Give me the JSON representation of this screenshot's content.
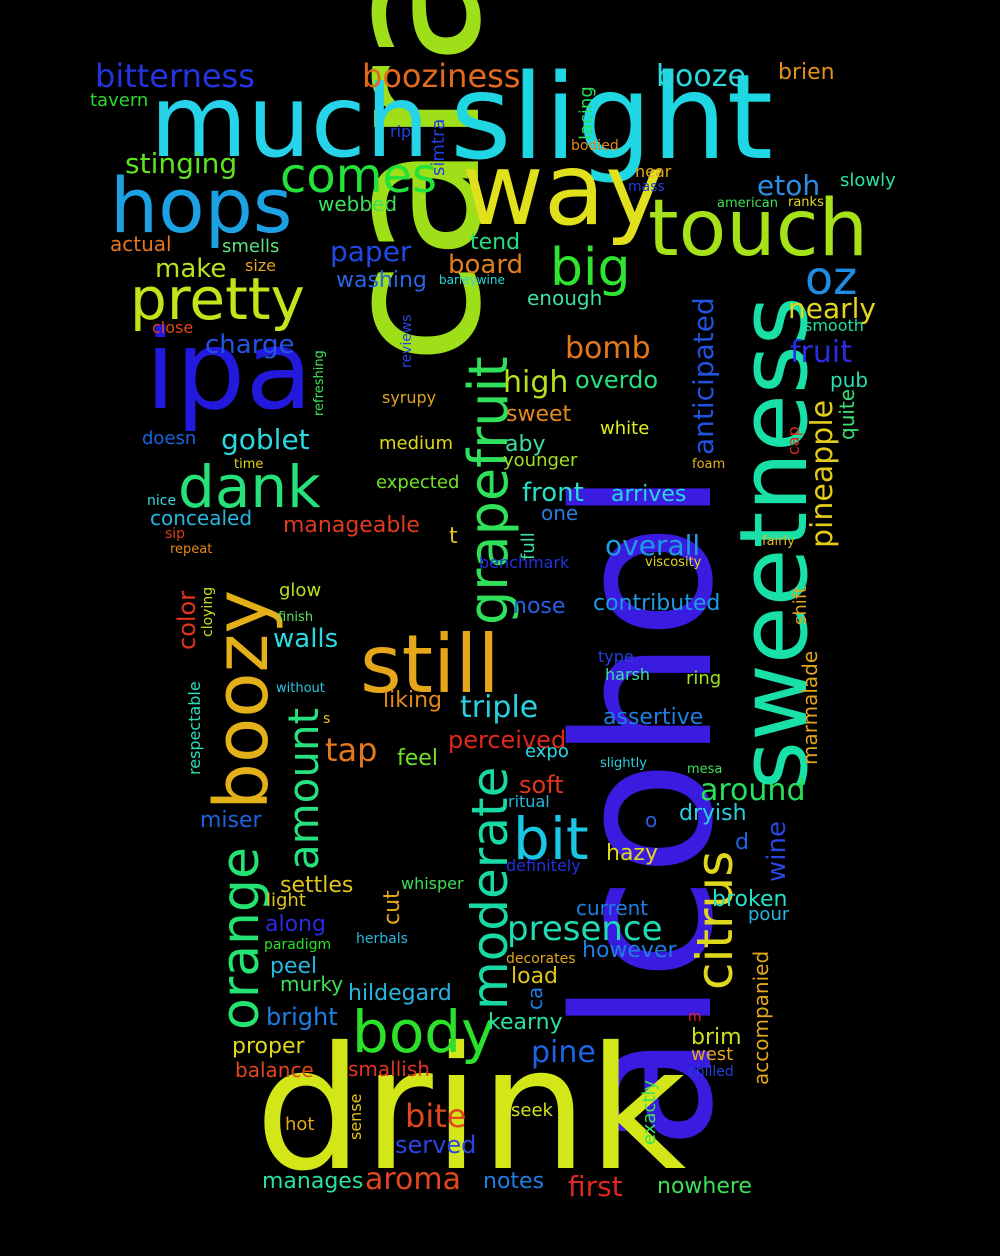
{
  "words": [
    {
      "text": "caramel",
      "color": "#9fdf1a"
    },
    {
      "text": "alcohol",
      "color": "#3a1be0"
    },
    {
      "text": "drink",
      "color": "#d3e617"
    },
    {
      "text": "slight",
      "color": "#1fd6e3"
    },
    {
      "text": "much",
      "color": "#27d3e8"
    },
    {
      "text": "sweetness",
      "color": "#19e0a7"
    },
    {
      "text": "way",
      "color": "#e1e01c"
    },
    {
      "text": "ipa",
      "color": "#2219dc"
    },
    {
      "text": "touch",
      "color": "#a6e21a"
    },
    {
      "text": "boozy",
      "color": "#e3b01a"
    },
    {
      "text": "hops",
      "color": "#1ca2e3"
    },
    {
      "text": "still",
      "color": "#e5a719"
    },
    {
      "text": "pretty",
      "color": "#c3e41a"
    },
    {
      "text": "grapefruit",
      "color": "#2fe05a"
    },
    {
      "text": "moderate",
      "color": "#18d9a3"
    },
    {
      "text": "dank",
      "color": "#26e07a"
    },
    {
      "text": "body",
      "color": "#2de02a"
    },
    {
      "text": "orange",
      "color": "#24e370"
    },
    {
      "text": "citrus",
      "color": "#dfd71c"
    },
    {
      "text": "bit",
      "color": "#1ac6e3"
    },
    {
      "text": "comes",
      "color": "#23e33a"
    },
    {
      "text": "big",
      "color": "#2fe52f"
    },
    {
      "text": "oz",
      "color": "#1f8ce3"
    },
    {
      "text": "amount",
      "color": "#27e17f"
    },
    {
      "text": "presence",
      "color": "#1fdcb4"
    },
    {
      "text": "pineapple",
      "color": "#e3cb1c"
    },
    {
      "text": "anticipated",
      "color": "#2153e0"
    },
    {
      "text": "bitterness",
      "color": "#2633e0"
    },
    {
      "text": "booziness",
      "color": "#e3691d"
    },
    {
      "text": "booze",
      "color": "#2bd8e0"
    },
    {
      "text": "brien",
      "color": "#e3901d"
    },
    {
      "text": "tavern",
      "color": "#2ad92a"
    },
    {
      "text": "stinging",
      "color": "#5fe321"
    },
    {
      "text": "etoh",
      "color": "#2b8ee3"
    },
    {
      "text": "slowly",
      "color": "#29e3a2"
    },
    {
      "text": "webbed",
      "color": "#3de05a"
    },
    {
      "text": "actual",
      "color": "#e3781f"
    },
    {
      "text": "smells",
      "color": "#5ee07c"
    },
    {
      "text": "paper",
      "color": "#2049e3"
    },
    {
      "text": "tend",
      "color": "#27e07c"
    },
    {
      "text": "make",
      "color": "#b9e31d"
    },
    {
      "text": "size",
      "color": "#e3a31c"
    },
    {
      "text": "board",
      "color": "#e07f1f"
    },
    {
      "text": "washing",
      "color": "#2666e3"
    },
    {
      "text": "enough",
      "color": "#3de0a0"
    },
    {
      "text": "nearly",
      "color": "#e3d61d"
    },
    {
      "text": "smooth",
      "color": "#20e0a0"
    },
    {
      "text": "close",
      "color": "#e0471f"
    },
    {
      "text": "charge",
      "color": "#2553e3"
    },
    {
      "text": "bomb",
      "color": "#e3781c"
    },
    {
      "text": "fruit",
      "color": "#2b2de3"
    },
    {
      "text": "high",
      "color": "#b3e31d"
    },
    {
      "text": "overdo",
      "color": "#26e07c"
    },
    {
      "text": "pub",
      "color": "#2bdfb0"
    },
    {
      "text": "syrupy",
      "color": "#e3a21f"
    },
    {
      "text": "sweet",
      "color": "#e3891c"
    },
    {
      "text": "quite",
      "color": "#3de075"
    },
    {
      "text": "doesn",
      "color": "#1a63e0"
    },
    {
      "text": "goblet",
      "color": "#2ad8e0"
    },
    {
      "text": "medium",
      "color": "#dfd91d"
    },
    {
      "text": "aby",
      "color": "#3de0a0"
    },
    {
      "text": "white",
      "color": "#dff01d"
    },
    {
      "text": "cap",
      "color": "#e0271f"
    },
    {
      "text": "time",
      "color": "#dfd51d"
    },
    {
      "text": "younger",
      "color": "#9ee01d"
    },
    {
      "text": "foam",
      "color": "#e3b21c"
    },
    {
      "text": "nice",
      "color": "#3ad8e0"
    },
    {
      "text": "expected",
      "color": "#6ee32a"
    },
    {
      "text": "front",
      "color": "#29e0c6"
    },
    {
      "text": "arrives",
      "color": "#29d8e0"
    },
    {
      "text": "concealed",
      "color": "#29b6e0"
    },
    {
      "text": "one",
      "color": "#2a7ae0"
    },
    {
      "text": "sip",
      "color": "#e03a1f"
    },
    {
      "text": "manageable",
      "color": "#e03a1f"
    },
    {
      "text": "t",
      "color": "#e3c41d"
    },
    {
      "text": "full",
      "color": "#3de0a0"
    },
    {
      "text": "overall",
      "color": "#1d9ce3"
    },
    {
      "text": "fairly",
      "color": "#e3b91d"
    },
    {
      "text": "repeat",
      "color": "#e3891c"
    },
    {
      "text": "benchmark",
      "color": "#2232e0"
    },
    {
      "text": "viscosity",
      "color": "#e3d71d"
    },
    {
      "text": "color",
      "color": "#e0351f"
    },
    {
      "text": "cloying",
      "color": "#cfe01d"
    },
    {
      "text": "glow",
      "color": "#b7e31d"
    },
    {
      "text": "nose",
      "color": "#2b5ee3"
    },
    {
      "text": "contributed",
      "color": "#1d9ce3"
    },
    {
      "text": "shift",
      "color": "#e3a71c"
    },
    {
      "text": "finish",
      "color": "#5fe060"
    },
    {
      "text": "walls",
      "color": "#29d8e0"
    },
    {
      "text": "type",
      "color": "#2241e0"
    },
    {
      "text": "harsh",
      "color": "#3de0a0"
    },
    {
      "text": "ring",
      "color": "#a1e31d"
    },
    {
      "text": "marmalade",
      "color": "#e3a31c"
    },
    {
      "text": "respectable",
      "color": "#29e0b6"
    },
    {
      "text": "without",
      "color": "#29c4e0"
    },
    {
      "text": "liking",
      "color": "#e3891c"
    },
    {
      "text": "triple",
      "color": "#29d0e0"
    },
    {
      "text": "assertive",
      "color": "#1d7ee3"
    },
    {
      "text": "s",
      "color": "#e3c41d"
    },
    {
      "text": "tap",
      "color": "#e3781c"
    },
    {
      "text": "perceived",
      "color": "#e0271f"
    },
    {
      "text": "expo",
      "color": "#29d8e0"
    },
    {
      "text": "feel",
      "color": "#6fe32a"
    },
    {
      "text": "slightly",
      "color": "#29d0e0"
    },
    {
      "text": "mesa",
      "color": "#3de05a"
    },
    {
      "text": "soft",
      "color": "#e0351f"
    },
    {
      "text": "around",
      "color": "#29e05a"
    },
    {
      "text": "miser",
      "color": "#1d63e3"
    },
    {
      "text": "ritual",
      "color": "#29b6e0"
    },
    {
      "text": "o",
      "color": "#2b5ee3"
    },
    {
      "text": "dryish",
      "color": "#29d0e0"
    },
    {
      "text": "wine",
      "color": "#2a45e0"
    },
    {
      "text": "d",
      "color": "#1d63e3"
    },
    {
      "text": "hazy",
      "color": "#dfd71c"
    },
    {
      "text": "definitely",
      "color": "#2232e0"
    },
    {
      "text": "settles",
      "color": "#e3c41d"
    },
    {
      "text": "whisper",
      "color": "#3de05a"
    },
    {
      "text": "light",
      "color": "#e3c41d"
    },
    {
      "text": "cut",
      "color": "#e3a71c"
    },
    {
      "text": "along",
      "color": "#2a2ae3"
    },
    {
      "text": "broken",
      "color": "#29e0c6"
    },
    {
      "text": "current",
      "color": "#1d7ee3"
    },
    {
      "text": "pour",
      "color": "#29b6e0"
    },
    {
      "text": "paradigm",
      "color": "#2ae02a"
    },
    {
      "text": "herbals",
      "color": "#29b6e0"
    },
    {
      "text": "however",
      "color": "#1d7ee3"
    },
    {
      "text": "peel",
      "color": "#29b6e0"
    },
    {
      "text": "murky",
      "color": "#3de05a"
    },
    {
      "text": "decorates",
      "color": "#e3a71c"
    },
    {
      "text": "ca",
      "color": "#1d7ee3"
    },
    {
      "text": "load",
      "color": "#e3c41d"
    },
    {
      "text": "accompanied",
      "color": "#e3a71c"
    },
    {
      "text": "hildegard",
      "color": "#29b6e0"
    },
    {
      "text": "bright",
      "color": "#1d7ee3"
    },
    {
      "text": "kearny",
      "color": "#29e0a0"
    },
    {
      "text": "m",
      "color": "#e0271f"
    },
    {
      "text": "brim",
      "color": "#cfe01d"
    },
    {
      "text": "proper",
      "color": "#e3d71d"
    },
    {
      "text": "west",
      "color": "#e3a71c"
    },
    {
      "text": "pine",
      "color": "#1d63e3"
    },
    {
      "text": "balance",
      "color": "#e0471f"
    },
    {
      "text": "smallish",
      "color": "#e0351f"
    },
    {
      "text": "chilled",
      "color": "#2241e0"
    },
    {
      "text": "bite",
      "color": "#e0471f"
    },
    {
      "text": "sense",
      "color": "#e3c41d"
    },
    {
      "text": "seek",
      "color": "#cfe01d"
    },
    {
      "text": "hot",
      "color": "#e3a71c"
    },
    {
      "text": "served",
      "color": "#2a45e0"
    },
    {
      "text": "exactly",
      "color": "#3de05a"
    },
    {
      "text": "aroma",
      "color": "#e0471f"
    },
    {
      "text": "manages",
      "color": "#29e0a0"
    },
    {
      "text": "notes",
      "color": "#1d7ee3"
    },
    {
      "text": "first",
      "color": "#e0271f"
    },
    {
      "text": "nowhere",
      "color": "#3de05a"
    },
    {
      "text": "rip",
      "color": "#2241e0"
    },
    {
      "text": "simtra",
      "color": "#2241e0"
    },
    {
      "text": "lacing",
      "color": "#29e05a"
    },
    {
      "text": "bodied",
      "color": "#e3891c"
    },
    {
      "text": "near",
      "color": "#e3a71c"
    },
    {
      "text": "mass",
      "color": "#2241e0"
    },
    {
      "text": "american",
      "color": "#3de05a"
    },
    {
      "text": "ranks",
      "color": "#e3d71d"
    },
    {
      "text": "barleywine",
      "color": "#29d8e0"
    },
    {
      "text": "reviews",
      "color": "#2a45e0"
    },
    {
      "text": "refreshing",
      "color": "#3de05a"
    }
  ]
}
